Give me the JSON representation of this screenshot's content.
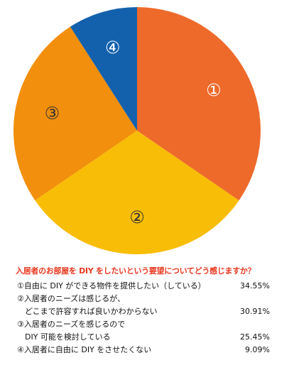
{
  "chart_data": {
    "type": "pie",
    "categories": [
      "①",
      "②",
      "③",
      "④"
    ],
    "values": [
      34.55,
      30.91,
      25.45,
      9.09
    ],
    "colors": [
      "#ee6a2b",
      "#f8bd06",
      "#f28f0c",
      "#1361ad"
    ],
    "label_colors": [
      "#ffffff",
      "#333333",
      "#333333",
      "#ffffff"
    ],
    "start": "12 o'clock",
    "direction": "clockwise"
  },
  "question": "入居者のお部屋を DIY をしたいという要望についてどう感じますか？",
  "legend": [
    {
      "text": "①自由に DIY ができる物件を提供したい（している）",
      "percent": "34.55%"
    },
    {
      "text": "②入居者のニーズは感じるが、\n　どこまで許容すれば良いかわからない",
      "percent": "30.91%"
    },
    {
      "text": "③入居者のニーズを感じるので\n　DIY 可能を検討している",
      "percent": "25.45%"
    },
    {
      "text": "④入居者に自由に DIY をさせたくない",
      "percent": "9.09%"
    }
  ]
}
